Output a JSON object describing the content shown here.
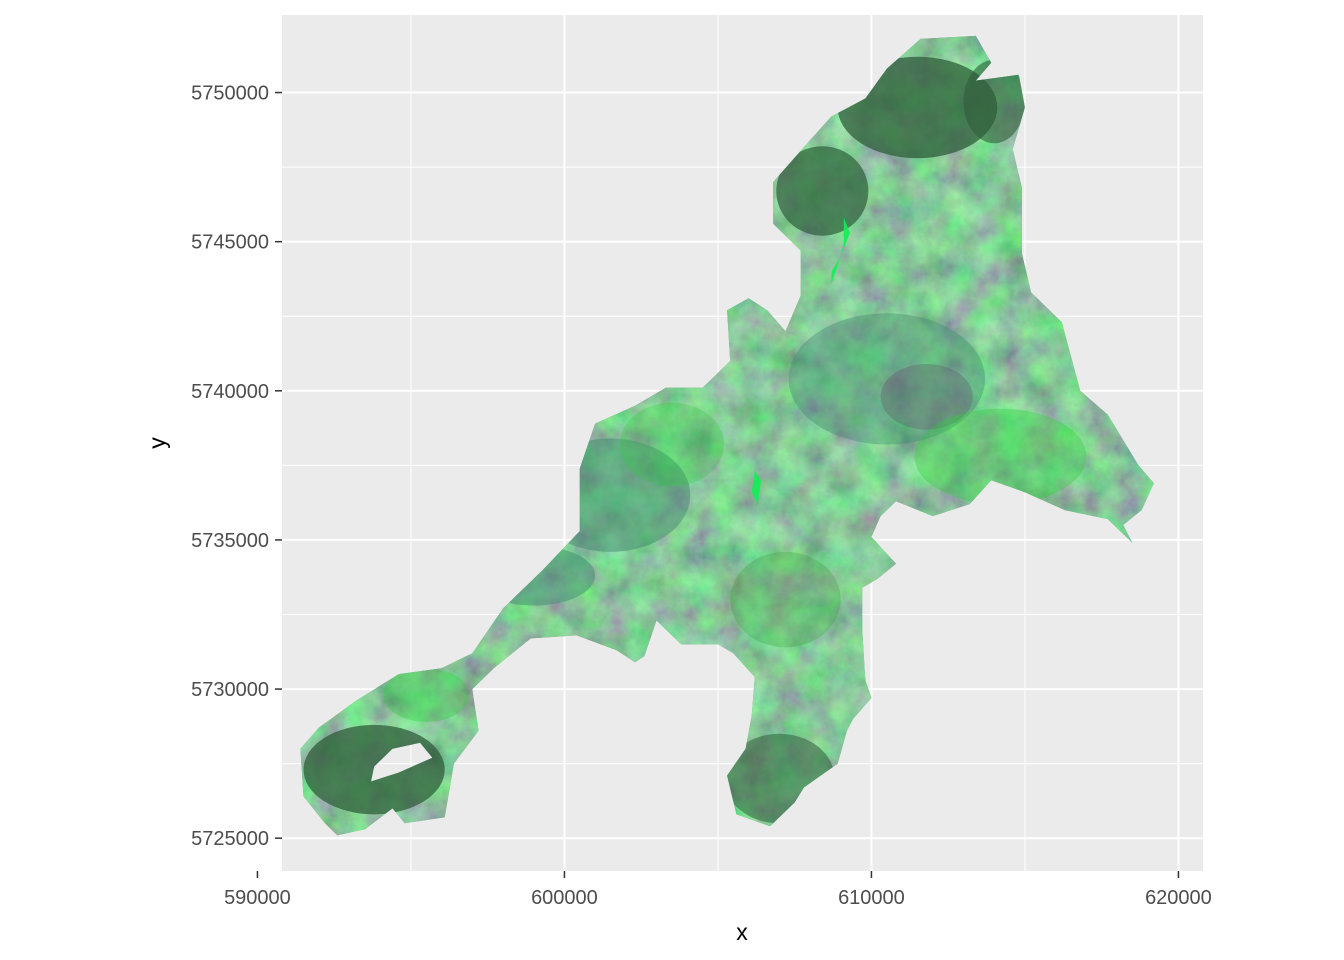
{
  "chart_data": {
    "type": "raster-map",
    "title": "",
    "xlabel": "x",
    "ylabel": "y",
    "xlim": [
      590800,
      620800
    ],
    "ylim": [
      5723900,
      5752600
    ],
    "x_ticks": [
      590000,
      600000,
      610000,
      620000
    ],
    "x_tick_labels": [
      "590000",
      "600000",
      "610000",
      "620000"
    ],
    "y_ticks": [
      5725000,
      5730000,
      5735000,
      5740000,
      5745000,
      5750000
    ],
    "y_tick_labels": [
      "5725000",
      "5730000",
      "5735000",
      "5740000",
      "5745000",
      "5750000"
    ],
    "grid": true,
    "legend": "none",
    "panel_background": "#ebebeb",
    "grid_color": "#ffffff",
    "raster_colors": {
      "dark_forest": "#2f5e3a",
      "green": "#3a9b3c",
      "bright_green": "#2ecc3a",
      "blue_green": "#3f8a6e",
      "purple_tint": "#5e5a6a",
      "water_bright": "#11ee55"
    },
    "outline": [
      [
        591400,
        5728000
      ],
      [
        592000,
        5728700
      ],
      [
        593200,
        5729600
      ],
      [
        594600,
        5730500
      ],
      [
        596000,
        5730700
      ],
      [
        597000,
        5731200
      ],
      [
        598000,
        5732700
      ],
      [
        599300,
        5734000
      ],
      [
        600500,
        5735300
      ],
      [
        600500,
        5737400
      ],
      [
        601000,
        5738900
      ],
      [
        602300,
        5739500
      ],
      [
        603300,
        5740100
      ],
      [
        604500,
        5740100
      ],
      [
        605400,
        5741000
      ],
      [
        605300,
        5742700
      ],
      [
        606000,
        5743100
      ],
      [
        606600,
        5742700
      ],
      [
        607200,
        5742000
      ],
      [
        607700,
        5743200
      ],
      [
        607700,
        5744700
      ],
      [
        606800,
        5745600
      ],
      [
        606800,
        5747000
      ],
      [
        608000,
        5748400
      ],
      [
        608700,
        5749200
      ],
      [
        609800,
        5749800
      ],
      [
        610500,
        5750800
      ],
      [
        611600,
        5751800
      ],
      [
        613400,
        5751900
      ],
      [
        613900,
        5751000
      ],
      [
        613400,
        5750400
      ],
      [
        614800,
        5750600
      ],
      [
        615000,
        5749500
      ],
      [
        614600,
        5748100
      ],
      [
        614900,
        5746800
      ],
      [
        614900,
        5744600
      ],
      [
        615200,
        5743300
      ],
      [
        616200,
        5742300
      ],
      [
        616800,
        5740000
      ],
      [
        617700,
        5739200
      ],
      [
        618700,
        5737500
      ],
      [
        619200,
        5736900
      ],
      [
        618800,
        5736000
      ],
      [
        618200,
        5735500
      ],
      [
        618500,
        5734900
      ],
      [
        617700,
        5735700
      ],
      [
        616300,
        5736000
      ],
      [
        615000,
        5736600
      ],
      [
        613900,
        5737000
      ],
      [
        613200,
        5736200
      ],
      [
        612000,
        5735800
      ],
      [
        610800,
        5736300
      ],
      [
        610300,
        5735800
      ],
      [
        610000,
        5735100
      ],
      [
        610800,
        5734200
      ],
      [
        610200,
        5733700
      ],
      [
        609700,
        5733400
      ],
      [
        609700,
        5732000
      ],
      [
        609800,
        5730300
      ],
      [
        610000,
        5729700
      ],
      [
        609400,
        5729000
      ],
      [
        609200,
        5728600
      ],
      [
        608900,
        5727500
      ],
      [
        607800,
        5726700
      ],
      [
        607500,
        5726200
      ],
      [
        606700,
        5725400
      ],
      [
        605600,
        5725800
      ],
      [
        605300,
        5727100
      ],
      [
        605900,
        5728000
      ],
      [
        606100,
        5729100
      ],
      [
        606200,
        5730400
      ],
      [
        605500,
        5731200
      ],
      [
        605000,
        5731500
      ],
      [
        603800,
        5731500
      ],
      [
        603000,
        5732300
      ],
      [
        602600,
        5731100
      ],
      [
        602300,
        5730900
      ],
      [
        601700,
        5731300
      ],
      [
        600400,
        5731800
      ],
      [
        598900,
        5731700
      ],
      [
        597700,
        5730700
      ],
      [
        597000,
        5730000
      ],
      [
        597200,
        5728600
      ],
      [
        596400,
        5727500
      ],
      [
        596100,
        5725700
      ],
      [
        594800,
        5725500
      ],
      [
        594400,
        5726000
      ],
      [
        593500,
        5725300
      ],
      [
        592600,
        5725100
      ],
      [
        592200,
        5725500
      ],
      [
        591500,
        5726400
      ]
    ],
    "holes": [
      [
        [
          593700,
          5726900
        ],
        [
          594600,
          5727200
        ],
        [
          595700,
          5727700
        ],
        [
          595300,
          5728200
        ],
        [
          594400,
          5728000
        ],
        [
          593800,
          5727400
        ]
      ]
    ]
  }
}
